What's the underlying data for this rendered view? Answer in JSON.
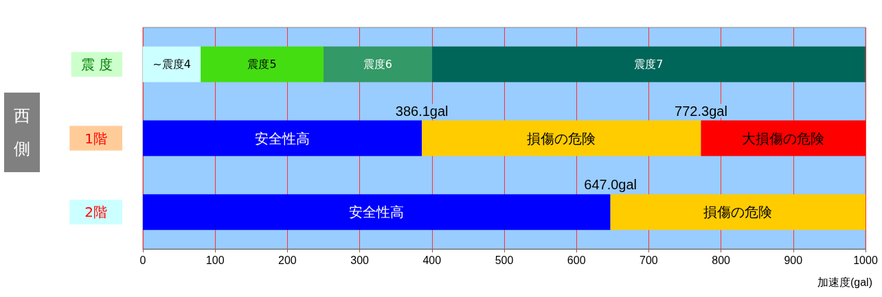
{
  "chart_data": {
    "type": "bar",
    "orientation": "horizontal",
    "stacked": true,
    "categories": [
      "震 度",
      "1階",
      "2階"
    ],
    "ylabel": "西側",
    "xlabel": "加速度(gal)",
    "series": [
      {
        "values": [
          80,
          386.1,
          647.0
        ],
        "colors": [
          "#ccffff",
          "#0000ff",
          "#0000ff"
        ],
        "value_labels": [
          "~震度4",
          "安全性高",
          "安全性高"
        ]
      },
      {
        "values": [
          170,
          386.2,
          353.0
        ],
        "colors": [
          "#44dd11",
          "#ffcc00",
          "#ffcc00"
        ],
        "value_labels": [
          "震度5",
          "損傷の危険",
          "損傷の危険"
        ]
      },
      {
        "values": [
          150,
          227.7,
          null
        ],
        "colors": [
          "#339966",
          "#ff0000",
          null
        ],
        "value_labels": [
          "震度6",
          "大損傷の危険",
          null
        ]
      },
      {
        "values": [
          600,
          null,
          null
        ],
        "colors": [
          "#00665a",
          null,
          null
        ],
        "value_labels": [
          "震度7",
          null,
          null
        ]
      }
    ],
    "annotations": [
      {
        "text": "386.1gal",
        "x": 386.1,
        "y": "1階"
      },
      {
        "text": "772.3gal",
        "x": 772.3,
        "y": "1階"
      },
      {
        "text": "647.0gal",
        "x": 647.0,
        "y": "2階"
      }
    ],
    "xlim": [
      0,
      1000
    ],
    "xticks": [
      0,
      100,
      200,
      300,
      400,
      500,
      600,
      700,
      800,
      900,
      1000
    ],
    "grid": "x"
  }
}
